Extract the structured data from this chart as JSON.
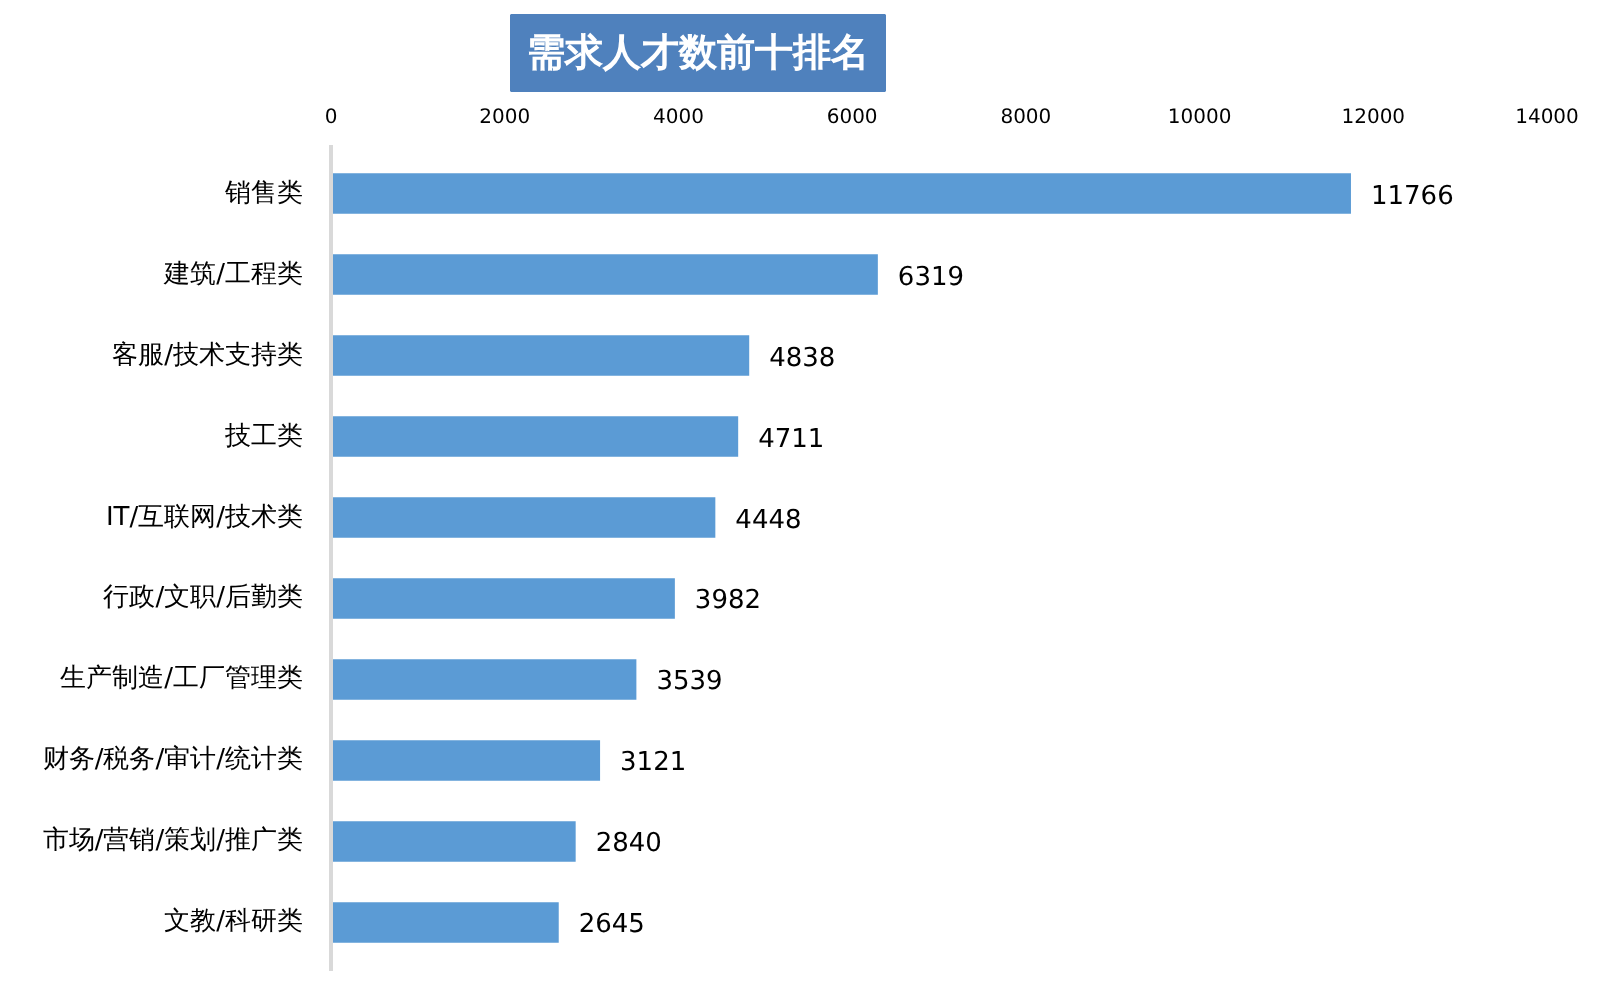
{
  "chart_data": {
    "type": "bar",
    "orientation": "horizontal",
    "title": "需求人才数前十排名",
    "categories": [
      "销售类",
      "建筑/工程类",
      "客服/技术支持类",
      "技工类",
      "IT/互联网/技术类",
      "行政/文职/后勤类",
      "生产制造/工厂管理类",
      "财务/税务/审计/统计类",
      "市场/营销/策划/推广类",
      "文教/科研类"
    ],
    "values": [
      11766,
      6319,
      4838,
      4711,
      4448,
      3982,
      3539,
      3121,
      2840,
      2645
    ],
    "color": "#5b9bd5",
    "xlim": [
      0,
      14000
    ],
    "xticks": [
      0,
      2000,
      4000,
      6000,
      8000,
      10000,
      12000,
      14000
    ],
    "data_labels": true
  }
}
